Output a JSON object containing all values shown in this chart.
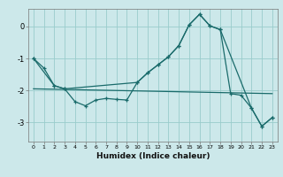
{
  "xlabel": "Humidex (Indice chaleur)",
  "bg_color": "#cce8ea",
  "grid_color": "#99cccc",
  "line_color": "#1a6b6b",
  "xlim": [
    -0.5,
    23.5
  ],
  "ylim": [
    -3.6,
    0.55
  ],
  "yticks": [
    0,
    -1,
    -2,
    -3
  ],
  "xticks": [
    0,
    1,
    2,
    3,
    4,
    5,
    6,
    7,
    8,
    9,
    10,
    11,
    12,
    13,
    14,
    15,
    16,
    17,
    18,
    19,
    20,
    21,
    22,
    23
  ],
  "series1_x": [
    0,
    1,
    2,
    3,
    4,
    5,
    6,
    7,
    8,
    9,
    10,
    11,
    12,
    13,
    14,
    15,
    16,
    17,
    18,
    21,
    22,
    23
  ],
  "series1_y": [
    -1.0,
    -1.3,
    -1.85,
    -1.95,
    -2.35,
    -2.48,
    -2.3,
    -2.25,
    -2.28,
    -2.3,
    -1.75,
    -1.45,
    -1.2,
    -0.95,
    -0.6,
    0.05,
    0.38,
    0.02,
    -0.1,
    -2.55,
    -3.12,
    -2.85
  ],
  "series2_x": [
    0,
    2,
    3,
    10,
    11,
    12,
    13,
    14,
    15,
    16,
    17,
    18,
    19,
    20,
    21,
    22,
    23
  ],
  "series2_y": [
    -1.0,
    -1.85,
    -1.95,
    -1.75,
    -1.45,
    -1.2,
    -0.95,
    -0.6,
    0.05,
    0.38,
    0.02,
    -0.1,
    -2.1,
    -2.15,
    -2.55,
    -3.12,
    -2.85
  ],
  "series3_x": [
    0,
    23
  ],
  "series3_y": [
    -1.95,
    -2.1
  ]
}
